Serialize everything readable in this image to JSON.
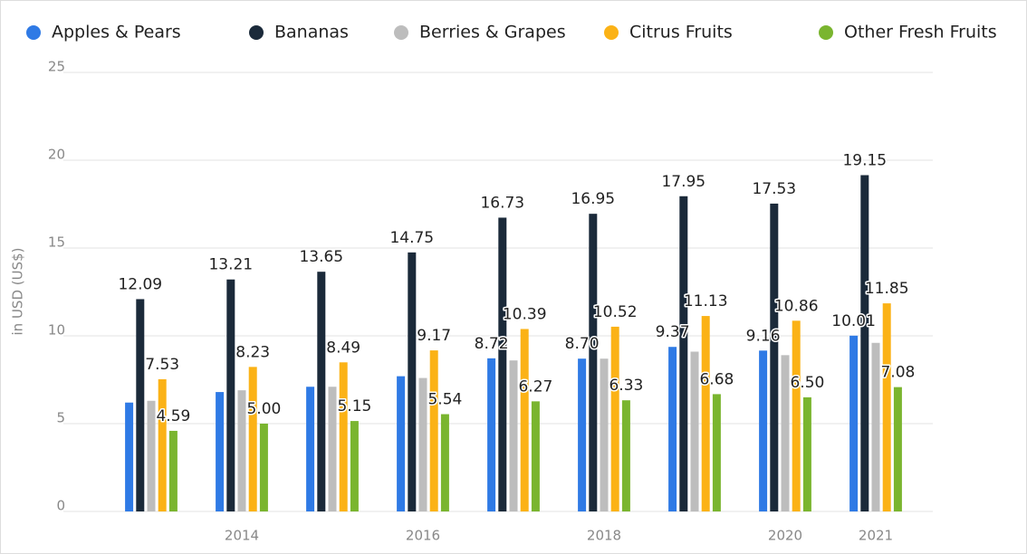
{
  "chart_data": {
    "type": "bar",
    "y_axis_label": "in USD (US$)",
    "categories": [
      null,
      "2014",
      null,
      "2016",
      null,
      "2018",
      null,
      "2020",
      "2021"
    ],
    "series": [
      {
        "name": "Apples & Pears",
        "color": "#2f7ae5",
        "values": [
          6.2,
          6.8,
          7.1,
          7.7,
          8.72,
          8.7,
          9.37,
          9.16,
          10.01
        ],
        "value_labels": [
          null,
          null,
          null,
          null,
          "8.72",
          "8.70",
          "9.37",
          "9.16",
          "10.01"
        ]
      },
      {
        "name": "Bananas",
        "color": "#1b2a3a",
        "values": [
          12.09,
          13.21,
          13.65,
          14.75,
          16.73,
          16.95,
          17.95,
          17.53,
          19.15
        ],
        "value_labels": [
          "12.09",
          "13.21",
          "13.65",
          "14.75",
          "16.73",
          "16.95",
          "17.95",
          "17.53",
          "19.15"
        ]
      },
      {
        "name": "Berries & Grapes",
        "color": "#bdbdbd",
        "values": [
          6.3,
          6.9,
          7.1,
          7.6,
          8.6,
          8.7,
          9.1,
          8.9,
          9.6
        ]
      },
      {
        "name": "Citrus Fruits",
        "color": "#fbb216",
        "values": [
          7.53,
          8.23,
          8.49,
          9.17,
          10.39,
          10.52,
          11.13,
          10.86,
          11.85
        ],
        "value_labels": [
          "7.53",
          "8.23",
          "8.49",
          "9.17",
          "10.39",
          "10.52",
          "11.13",
          "10.86",
          "11.85"
        ]
      },
      {
        "name": "Other Fresh Fruits",
        "color": "#7ab52f",
        "values": [
          4.59,
          5.0,
          5.15,
          5.54,
          6.27,
          6.33,
          6.68,
          6.5,
          7.08
        ],
        "value_labels": [
          "4.59",
          "5.00",
          "5.15",
          "5.54",
          "6.27",
          "6.33",
          "6.68",
          "6.50",
          "7.08"
        ]
      }
    ],
    "ylim": [
      0,
      25
    ],
    "yticks": [
      0,
      5,
      10,
      15,
      20,
      25
    ],
    "grid": true,
    "legend": "top"
  }
}
